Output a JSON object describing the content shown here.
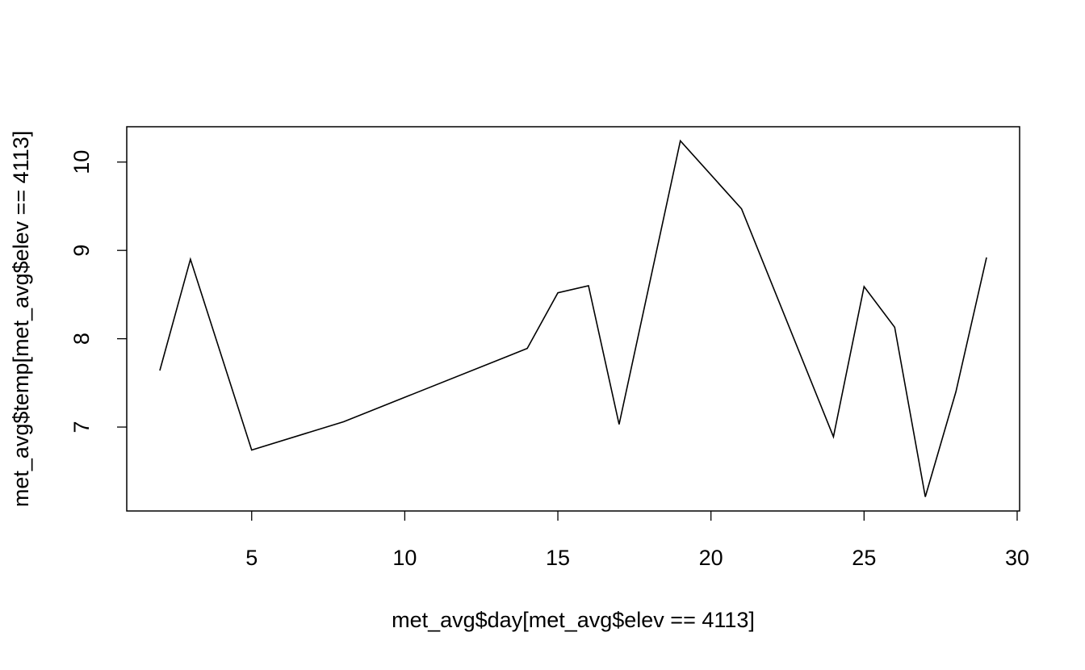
{
  "chart_data": {
    "type": "line",
    "xlabel": "met_avg$day[met_avg$elev == 4113]",
    "ylabel": "met_avg$temp[met_avg$elev == 4113]",
    "x": [
      2,
      3,
      5,
      8,
      14,
      15,
      16,
      17,
      19,
      21,
      24,
      25,
      26,
      27,
      28,
      29
    ],
    "series": [
      {
        "color": "#000000",
        "values": [
          7.64,
          8.9,
          6.74,
          7.06,
          7.89,
          8.52,
          8.6,
          7.03,
          10.24,
          9.47,
          6.89,
          8.59,
          8.13,
          6.21,
          7.4,
          8.92
        ]
      }
    ],
    "xlim": [
      0.92,
      30.08
    ],
    "xticks": [
      5,
      10,
      15,
      20,
      25,
      30
    ],
    "ylim": [
      6.05,
      10.4
    ],
    "yticks": [
      7,
      8,
      9,
      10
    ]
  }
}
